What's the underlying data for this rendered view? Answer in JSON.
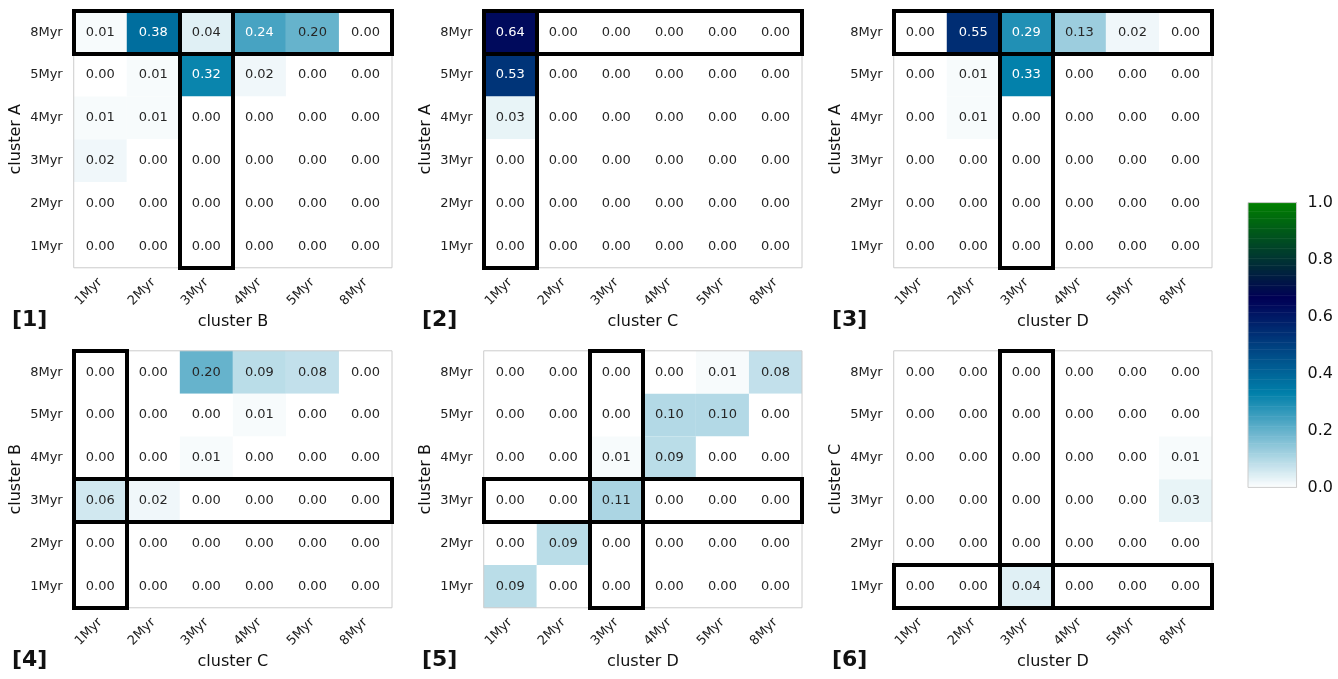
{
  "chart_data": [
    {
      "type": "heatmap",
      "xlabel": "cluster B",
      "ylabel": "cluster A",
      "annotations": [
        "[1]"
      ],
      "categories": [
        "1Myr",
        "2Myr",
        "3Myr",
        "4Myr",
        "5Myr",
        "8Myr"
      ],
      "y_categories": [
        "8Myr",
        "5Myr",
        "4Myr",
        "3Myr",
        "2Myr",
        "1Myr"
      ],
      "cells": [
        [
          0.01,
          0.38,
          0.04,
          0.24,
          0.2,
          0
        ],
        [
          0,
          0.01,
          0.32,
          0.02,
          0,
          0
        ],
        [
          0.01,
          0.01,
          0,
          0,
          0,
          0
        ],
        [
          0.02,
          0,
          0,
          0,
          0,
          0
        ],
        [
          0,
          0,
          0,
          0,
          0,
          0
        ],
        [
          0,
          0,
          0,
          0,
          0,
          0
        ]
      ],
      "cell_labels": [
        [
          "0.01",
          "0.38",
          "0.04",
          "0.24",
          "0.20",
          "0.00"
        ],
        [
          "0.00",
          "0.01",
          "0.32",
          "0.02",
          "0.00",
          "0.00"
        ],
        [
          "0.01",
          "0.01",
          "0.00",
          "0.00",
          "0.00",
          "0.00"
        ],
        [
          "0.02",
          "0.00",
          "0.00",
          "0.00",
          "0.00",
          "0.00"
        ],
        [
          "0.00",
          "0.00",
          "0.00",
          "0.00",
          "0.00",
          "0.00"
        ],
        [
          "0.00",
          "0.00",
          "0.00",
          "0.00",
          "0.00",
          "0.00"
        ]
      ],
      "grid": false
    },
    {
      "type": "heatmap",
      "xlabel": "cluster C",
      "ylabel": "cluster A",
      "annotations": [
        "[2]"
      ],
      "categories": [
        "1Myr",
        "2Myr",
        "3Myr",
        "4Myr",
        "5Myr",
        "8Myr"
      ],
      "y_categories": [
        "8Myr",
        "5Myr",
        "4Myr",
        "3Myr",
        "2Myr",
        "1Myr"
      ],
      "cells": [
        [
          0.64,
          0,
          0,
          0,
          0,
          0
        ],
        [
          0.53,
          0,
          0,
          0,
          0,
          0
        ],
        [
          0.03,
          0,
          0,
          0,
          0,
          0
        ],
        [
          0,
          0,
          0,
          0,
          0,
          0
        ],
        [
          0,
          0,
          0,
          0,
          0,
          0
        ],
        [
          0,
          0,
          0,
          0,
          0,
          0
        ]
      ],
      "cell_labels": [
        [
          "0.64",
          "0.00",
          "0.00",
          "0.00",
          "0.00",
          "0.00"
        ],
        [
          "0.53",
          "0.00",
          "0.00",
          "0.00",
          "0.00",
          "0.00"
        ],
        [
          "0.03",
          "0.00",
          "0.00",
          "0.00",
          "0.00",
          "0.00"
        ],
        [
          "0.00",
          "0.00",
          "0.00",
          "0.00",
          "0.00",
          "0.00"
        ],
        [
          "0.00",
          "0.00",
          "0.00",
          "0.00",
          "0.00",
          "0.00"
        ],
        [
          "0.00",
          "0.00",
          "0.00",
          "0.00",
          "0.00",
          "0.00"
        ]
      ],
      "grid": false
    },
    {
      "type": "heatmap",
      "xlabel": "cluster D",
      "ylabel": "cluster A",
      "annotations": [
        "[3]"
      ],
      "categories": [
        "1Myr",
        "2Myr",
        "3Myr",
        "4Myr",
        "5Myr",
        "8Myr"
      ],
      "y_categories": [
        "8Myr",
        "5Myr",
        "4Myr",
        "3Myr",
        "2Myr",
        "1Myr"
      ],
      "cells": [
        [
          0,
          0.55,
          0.29,
          0.13,
          0.02,
          0
        ],
        [
          0,
          0.01,
          0.33,
          0,
          0,
          0
        ],
        [
          0,
          0.01,
          0,
          0,
          0,
          0
        ],
        [
          0,
          0,
          0,
          0,
          0,
          0
        ],
        [
          0,
          0,
          0,
          0,
          0,
          0
        ],
        [
          0,
          0,
          0,
          0,
          0,
          0
        ]
      ],
      "cell_labels": [
        [
          "0.00",
          "0.55",
          "0.29",
          "0.13",
          "0.02",
          "0.00"
        ],
        [
          "0.00",
          "0.01",
          "0.33",
          "0.00",
          "0.00",
          "0.00"
        ],
        [
          "0.00",
          "0.01",
          "0.00",
          "0.00",
          "0.00",
          "0.00"
        ],
        [
          "0.00",
          "0.00",
          "0.00",
          "0.00",
          "0.00",
          "0.00"
        ],
        [
          "0.00",
          "0.00",
          "0.00",
          "0.00",
          "0.00",
          "0.00"
        ],
        [
          "0.00",
          "0.00",
          "0.00",
          "0.00",
          "0.00",
          "0.00"
        ]
      ],
      "clim": [
        0,
        1
      ],
      "cticks": [
        {
          "value": 0,
          "label": "0.0"
        },
        {
          "value": 0.2,
          "label": "0.2"
        },
        {
          "value": 0.4,
          "label": "0.4"
        },
        {
          "value": 0.6,
          "label": "0.6"
        },
        {
          "value": 0.8,
          "label": "0.8"
        },
        {
          "value": 1,
          "label": "1.0"
        }
      ]
    },
    {
      "type": "heatmap",
      "xlabel": "cluster C",
      "ylabel": "cluster B",
      "annotations": [
        "[4]"
      ],
      "categories": [
        "1Myr",
        "2Myr",
        "3Myr",
        "4Myr",
        "5Myr",
        "8Myr"
      ],
      "y_categories": [
        "8Myr",
        "5Myr",
        "4Myr",
        "3Myr",
        "2Myr",
        "1Myr"
      ],
      "cells": [
        [
          0,
          0,
          0.2,
          0.09,
          0.08,
          0
        ],
        [
          0,
          0,
          0,
          0.01,
          0,
          0
        ],
        [
          0,
          0,
          0.01,
          0,
          0,
          0
        ],
        [
          0.06,
          0.02,
          0,
          0,
          0,
          0
        ],
        [
          0,
          0,
          0,
          0,
          0,
          0
        ],
        [
          0,
          0,
          0,
          0,
          0,
          0
        ]
      ],
      "cell_labels": [
        [
          "0.00",
          "0.00",
          "0.20",
          "0.09",
          "0.08",
          "0.00"
        ],
        [
          "0.00",
          "0.00",
          "0.00",
          "0.01",
          "0.00",
          "0.00"
        ],
        [
          "0.00",
          "0.00",
          "0.01",
          "0.00",
          "0.00",
          "0.00"
        ],
        [
          "0.06",
          "0.02",
          "0.00",
          "0.00",
          "0.00",
          "0.00"
        ],
        [
          "0.00",
          "0.00",
          "0.00",
          "0.00",
          "0.00",
          "0.00"
        ],
        [
          "0.00",
          "0.00",
          "0.00",
          "0.00",
          "0.00",
          "0.00"
        ]
      ],
      "grid": false
    },
    {
      "type": "heatmap",
      "xlabel": "cluster D",
      "ylabel": "cluster B",
      "annotations": [
        "[5]"
      ],
      "categories": [
        "1Myr",
        "2Myr",
        "3Myr",
        "4Myr",
        "5Myr",
        "8Myr"
      ],
      "y_categories": [
        "8Myr",
        "5Myr",
        "4Myr",
        "3Myr",
        "2Myr",
        "1Myr"
      ],
      "cells": [
        [
          0,
          0,
          0,
          0,
          0.01,
          0.08
        ],
        [
          0,
          0,
          0,
          0.1,
          0.1,
          0
        ],
        [
          0,
          0,
          0.01,
          0.09,
          0,
          0
        ],
        [
          0,
          0,
          0.11,
          0,
          0,
          0
        ],
        [
          0,
          0.09,
          0,
          0,
          0,
          0
        ],
        [
          0.09,
          0,
          0,
          0,
          0,
          0
        ]
      ],
      "cell_labels": [
        [
          "0.00",
          "0.00",
          "0.00",
          "0.00",
          "0.01",
          "0.08"
        ],
        [
          "0.00",
          "0.00",
          "0.00",
          "0.10",
          "0.10",
          "0.00"
        ],
        [
          "0.00",
          "0.00",
          "0.01",
          "0.09",
          "0.00",
          "0.00"
        ],
        [
          "0.00",
          "0.00",
          "0.11",
          "0.00",
          "0.00",
          "0.00"
        ],
        [
          "0.00",
          "0.09",
          "0.00",
          "0.00",
          "0.00",
          "0.00"
        ],
        [
          "0.09",
          "0.00",
          "0.00",
          "0.00",
          "0.00",
          "0.00"
        ]
      ],
      "grid": false
    },
    {
      "type": "heatmap",
      "xlabel": "cluster D",
      "ylabel": "cluster C",
      "annotations": [
        "[6]"
      ],
      "categories": [
        "1Myr",
        "2Myr",
        "3Myr",
        "4Myr",
        "5Myr",
        "8Myr"
      ],
      "y_categories": [
        "8Myr",
        "5Myr",
        "4Myr",
        "3Myr",
        "2Myr",
        "1Myr"
      ],
      "cells": [
        [
          0,
          0,
          0,
          0,
          0,
          0
        ],
        [
          0,
          0,
          0,
          0,
          0,
          0
        ],
        [
          0,
          0,
          0,
          0,
          0,
          0.01
        ],
        [
          0,
          0,
          0,
          0,
          0,
          0.03
        ],
        [
          0,
          0,
          0,
          0,
          0,
          0
        ],
        [
          0,
          0,
          0.04,
          0,
          0,
          0
        ]
      ],
      "cell_labels": [
        [
          "0.00",
          "0.00",
          "0.00",
          "0.00",
          "0.00",
          "0.00"
        ],
        [
          "0.00",
          "0.00",
          "0.00",
          "0.00",
          "0.00",
          "0.00"
        ],
        [
          "0.00",
          "0.00",
          "0.00",
          "0.00",
          "0.00",
          "0.01"
        ],
        [
          "0.00",
          "0.00",
          "0.00",
          "0.00",
          "0.00",
          "0.03"
        ],
        [
          "0.00",
          "0.00",
          "0.00",
          "0.00",
          "0.00",
          "0.00"
        ],
        [
          "0.00",
          "0.00",
          "0.04",
          "0.00",
          "0.00",
          "0.00"
        ]
      ],
      "grid": false
    }
  ]
}
